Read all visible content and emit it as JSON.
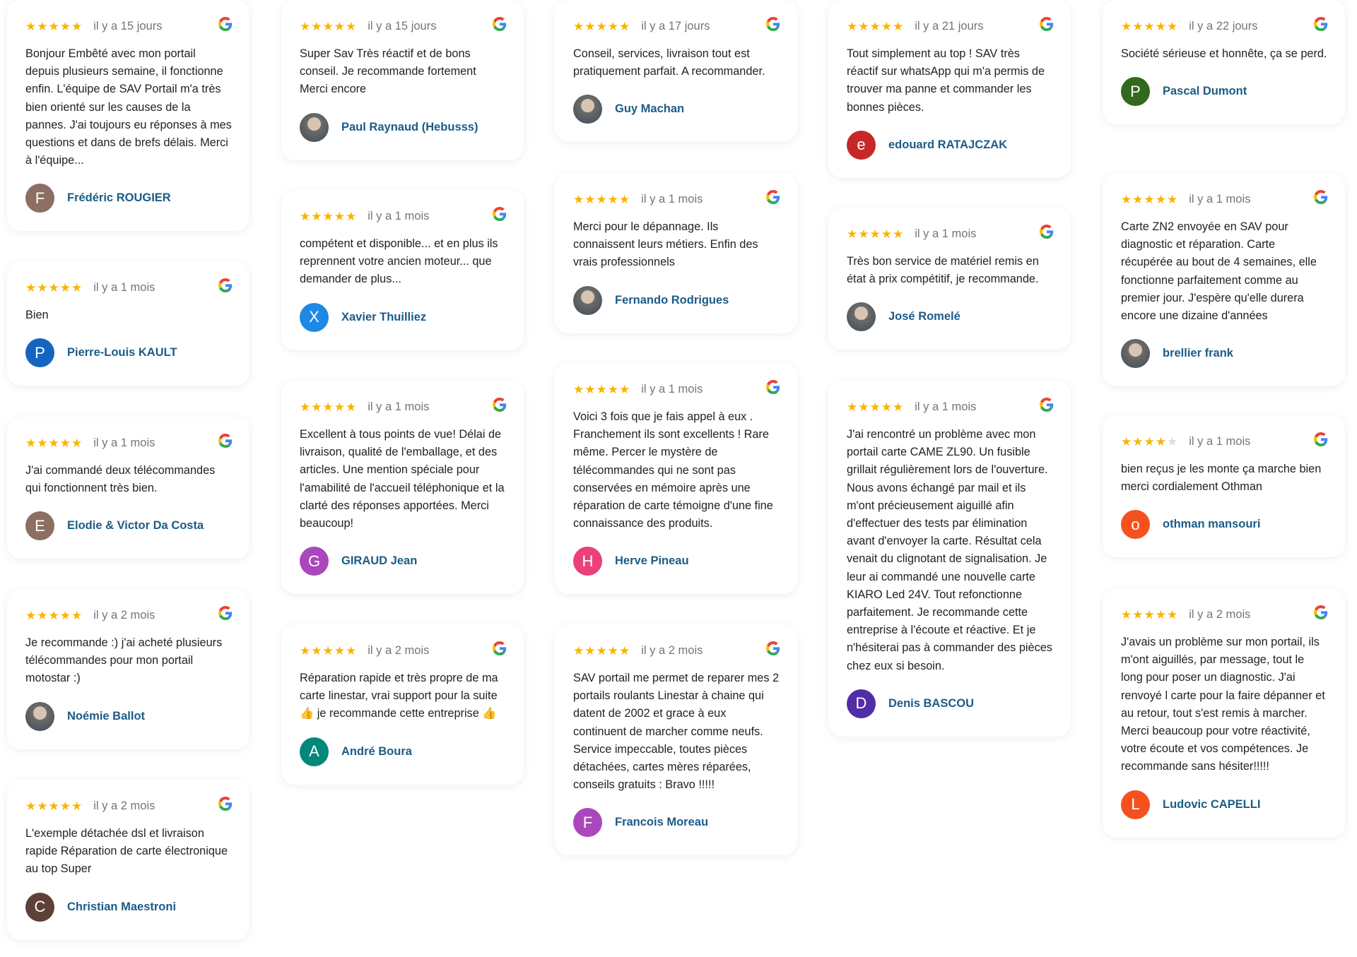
{
  "colors": {
    "star": "#f7b500",
    "name": "#1b5c86",
    "date": "#757575"
  },
  "columns": [
    [
      {
        "rating": 5,
        "date": "il y a 15 jours",
        "text": "Bonjour Embêté avec mon portail depuis plusieurs semaine, il fonctionne enfin. L'équipe de SAV Portail m'a très bien orienté sur les causes de la pannes. J'ai toujours eu réponses à mes questions et dans de brefs délais. Merci à l'équipe...",
        "author": "Frédéric ROUGIER",
        "initial": "F",
        "avatar_color": "#8d6e63"
      },
      {
        "rating": 5,
        "date": "il y a 1 mois",
        "text": "Bien",
        "author": "Pierre-Louis KAULT",
        "initial": "P",
        "avatar_color": "#1565c0"
      },
      {
        "rating": 5,
        "date": "il y a 1 mois",
        "text": "J'ai commandé deux télécommandes qui fonctionnent très bien.",
        "author": "Elodie & Victor Da Costa",
        "initial": "E",
        "avatar_color": "#8d6e63"
      },
      {
        "rating": 5,
        "date": "il y a 2 mois",
        "text": "Je recommande :) j'ai acheté plusieurs télécommandes pour mon portail motostar :)",
        "author": "Noémie Ballot",
        "initial": "",
        "avatar_color": "photo"
      },
      {
        "rating": 5,
        "date": "il y a 2 mois",
        "text": "L'exemple détachée dsl et livraison rapide Réparation de carte électronique au top Super",
        "author": "Christian Maestroni",
        "initial": "C",
        "avatar_color": "#5d4037"
      }
    ],
    [
      {
        "rating": 5,
        "date": "il y a 15 jours",
        "text": "Super Sav Très réactif et de bons conseil. Je recommande fortement Merci encore",
        "author": "Paul Raynaud (Hebusss)",
        "initial": "",
        "avatar_color": "photo"
      },
      {
        "rating": 5,
        "date": "il y a 1 mois",
        "text": "compétent et disponible... et en plus ils reprennent votre ancien moteur... que demander de plus...",
        "author": "Xavier Thuilliez",
        "initial": "X",
        "avatar_color": "#1e88e5"
      },
      {
        "rating": 5,
        "date": "il y a 1 mois",
        "text": "Excellent à tous points de vue! Délai de livraison, qualité de l'emballage, et des articles. Une mention spéciale pour l'amabilité de l'accueil téléphonique et la clarté des réponses apportées. Merci beaucoup!",
        "author": "GIRAUD Jean",
        "initial": "G",
        "avatar_color": "#ab47bc"
      },
      {
        "rating": 5,
        "date": "il y a 2 mois",
        "text": "Réparation rapide et très propre de ma carte linestar, vrai support pour la suite 👍 je recommande cette entreprise 👍",
        "author": "André Boura",
        "initial": "A",
        "avatar_color": "#00897b"
      }
    ],
    [
      {
        "rating": 5,
        "date": "il y a 17 jours",
        "text": "Conseil, services, livraison tout est pratiquement parfait. A recommander.",
        "author": "Guy Machan",
        "initial": "",
        "avatar_color": "photo"
      },
      {
        "rating": 5,
        "date": "il y a 1 mois",
        "text": "Merci pour le dépannage. Ils connaissent leurs métiers. Enfin des vrais professionnels",
        "author": "Fernando Rodrigues",
        "initial": "",
        "avatar_color": "photo"
      },
      {
        "rating": 5,
        "date": "il y a 1 mois",
        "text": "Voici 3 fois que je fais appel à eux . Franchement ils sont excellents ! Rare même. Percer le mystère de télécommandes qui ne sont pas conservées en mémoire après une réparation de carte témoigne d'une fine connaissance des produits.",
        "author": "Herve Pineau",
        "initial": "H",
        "avatar_color": "#ec407a"
      },
      {
        "rating": 5,
        "date": "il y a 2 mois",
        "text": "SAV portail me permet de reparer mes 2 portails roulants Linestar à chaine qui datent de 2002 et grace à eux continuent de marcher comme neufs. Service impeccable, toutes pièces détachées, cartes mères réparées, conseils gratuits : Bravo !!!!!",
        "author": "Francois Moreau",
        "initial": "F",
        "avatar_color": "#ab47bc"
      }
    ],
    [
      {
        "rating": 5,
        "date": "il y a 21 jours",
        "text": "Tout simplement au top ! SAV très réactif sur whatsApp qui m'a permis de trouver ma panne et commander les bonnes pièces.",
        "author": "edouard RATAJCZAK",
        "initial": "e",
        "avatar_color": "#c62828"
      },
      {
        "rating": 5,
        "date": "il y a 1 mois",
        "text": "Très bon service de matériel remis en état à prix compétitif, je recommande.",
        "author": "José Romelé",
        "initial": "",
        "avatar_color": "photo"
      },
      {
        "rating": 5,
        "date": "il y a 1 mois",
        "text": "J'ai rencontré un problème avec mon portail carte CAME ZL90. Un fusible grillait régulièrement lors de l'ouverture. Nous avons échangé par mail et ils m'ont précieusement aiguillé afin d'effectuer des tests par élimination avant d'envoyer la carte. Résultat cela venait du clignotant de signalisation. Je leur ai commandé une nouvelle carte KIARO Led 24V. Tout refonctionne parfaitement. Je recommande cette entreprise à l'écoute et réactive. Et je n'hésiterai pas à commander des pièces chez eux si besoin.",
        "author": "Denis BASCOU",
        "initial": "D",
        "avatar_color": "#512da8"
      }
    ],
    [
      {
        "rating": 5,
        "date": "il y a 22 jours",
        "text": "Société sérieuse et honnête, ça se perd.",
        "author": "Pascal Dumont",
        "initial": "P",
        "avatar_color": "#33691e"
      },
      {
        "rating": 5,
        "date": "il y a 1 mois",
        "text": "Carte ZN2 envoyée en SAV pour diagnostic et réparation. Carte récupérée au bout de 4 semaines, elle fonctionne parfaitement comme au premier jour. J'espère qu'elle durera encore une dizaine d'années",
        "author": "brellier frank",
        "initial": "",
        "avatar_color": "photo"
      },
      {
        "rating": 4,
        "date": "il y a 1 mois",
        "text": "bien reçus je les monte ça marche bien merci cordialement Othman",
        "author": "othman mansouri",
        "initial": "o",
        "avatar_color": "#f4511e"
      },
      {
        "rating": 5,
        "date": "il y a 2 mois",
        "text": "J'avais un problème sur mon portail, ils m'ont aiguillés, par message, tout le long pour poser un diagnostic. J'ai renvoyé l carte pour la faire dépanner et au retour, tout s'est remis à marcher. Merci beaucoup pour votre réactivité, votre écoute et vos compétences. Je recommande sans hésiter!!!!!",
        "author": "Ludovic CAPELLI",
        "initial": "L",
        "avatar_color": "#f4511e"
      }
    ]
  ]
}
